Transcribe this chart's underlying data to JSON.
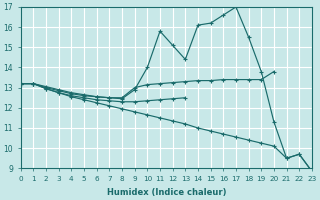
{
  "xlabel": "Humidex (Indice chaleur)",
  "xlim": [
    0,
    23
  ],
  "ylim": [
    9,
    17
  ],
  "yticks": [
    9,
    10,
    11,
    12,
    13,
    14,
    15,
    16,
    17
  ],
  "xticks": [
    0,
    1,
    2,
    3,
    4,
    5,
    6,
    7,
    8,
    9,
    10,
    11,
    12,
    13,
    14,
    15,
    16,
    17,
    18,
    19,
    20,
    21,
    22,
    23
  ],
  "bg_color": "#c8e8e8",
  "line_color": "#1a6b6b",
  "grid_color": "#ffffff",
  "lines": [
    {
      "x": [
        0,
        1,
        2,
        3,
        4,
        5,
        6,
        7,
        8,
        9,
        10,
        11,
        12,
        13,
        14,
        15,
        16,
        17,
        18,
        19,
        20,
        21,
        22,
        23
      ],
      "y": [
        13.2,
        13.2,
        13.05,
        12.9,
        12.75,
        12.65,
        12.55,
        12.5,
        12.45,
        12.9,
        14.0,
        15.8,
        15.1,
        14.4,
        16.1,
        16.2,
        16.6,
        17.0,
        15.5,
        13.8,
        11.3,
        9.5,
        9.7,
        8.85
      ]
    },
    {
      "x": [
        0,
        1,
        2,
        3,
        4,
        5,
        6,
        7,
        8,
        9,
        10,
        11,
        12,
        13,
        14,
        15,
        16,
        17,
        18,
        19,
        20
      ],
      "y": [
        13.2,
        13.2,
        13.0,
        12.85,
        12.7,
        12.6,
        12.55,
        12.5,
        12.5,
        13.0,
        13.15,
        13.2,
        13.25,
        13.3,
        13.35,
        13.35,
        13.4,
        13.4,
        13.4,
        13.4,
        13.8
      ]
    },
    {
      "x": [
        0,
        1,
        2,
        3,
        4,
        5,
        6,
        7,
        8,
        9,
        10,
        11,
        12,
        13
      ],
      "y": [
        13.2,
        13.2,
        12.95,
        12.75,
        12.6,
        12.5,
        12.4,
        12.35,
        12.3,
        12.3,
        12.35,
        12.4,
        12.45,
        12.5
      ]
    },
    {
      "x": [
        0,
        1,
        2,
        3,
        4,
        5,
        6,
        7,
        8,
        9,
        10,
        11,
        12,
        13,
        14,
        15,
        16,
        17,
        18,
        19,
        20,
        21,
        22,
        23
      ],
      "y": [
        13.2,
        13.2,
        12.95,
        12.75,
        12.55,
        12.4,
        12.25,
        12.1,
        11.95,
        11.8,
        11.65,
        11.5,
        11.35,
        11.2,
        11.0,
        10.85,
        10.7,
        10.55,
        10.4,
        10.25,
        10.1,
        9.5,
        9.7,
        8.85
      ]
    }
  ]
}
